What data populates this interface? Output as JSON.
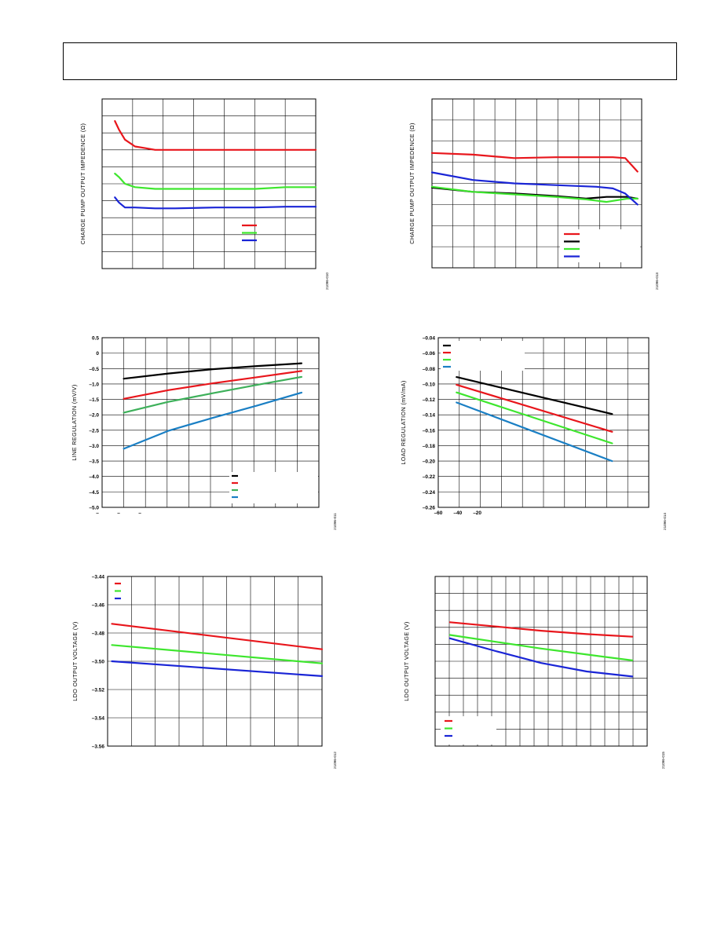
{
  "chart_data": [
    {
      "type": "line",
      "ylabel": "CHARGE PUMP OUTPUT IMPEDENCE (Ω)",
      "figure_id": "21096-010",
      "grid": true,
      "series": [
        {
          "color": "#e8161c",
          "x": [
            0,
            0.02,
            0.05,
            0.1,
            0.15,
            0.2,
            0.3,
            0.5,
            0.7,
            0.85,
            1.0
          ],
          "values": [
            0.87,
            0.82,
            0.76,
            0.72,
            0.71,
            0.7,
            0.7,
            0.7,
            0.7,
            0.7,
            0.7
          ]
        },
        {
          "color": "#3ee62e",
          "x": [
            0,
            0.02,
            0.05,
            0.1,
            0.2,
            0.3,
            0.5,
            0.7,
            0.85,
            1.0
          ],
          "values": [
            0.56,
            0.54,
            0.5,
            0.48,
            0.47,
            0.47,
            0.47,
            0.47,
            0.48,
            0.48
          ]
        },
        {
          "color": "#1a25d6",
          "x": [
            0,
            0.02,
            0.05,
            0.1,
            0.2,
            0.3,
            0.5,
            0.7,
            0.85,
            1.0
          ],
          "values": [
            0.42,
            0.39,
            0.36,
            0.36,
            0.355,
            0.355,
            0.36,
            0.36,
            0.365,
            0.365
          ]
        }
      ]
    },
    {
      "type": "line",
      "ylabel": "CHARGE PUMP OUTPUT IMPEDENCE (Ω)",
      "figure_id": "21096-013",
      "grid": true,
      "series": [
        {
          "color": "#e8161c",
          "x": [
            0,
            0.2,
            0.4,
            0.6,
            0.8,
            0.88,
            0.94,
            1.0
          ],
          "values": [
            0.68,
            0.67,
            0.65,
            0.655,
            0.655,
            0.655,
            0.65,
            0.57
          ]
        },
        {
          "color": "#000000",
          "x": [
            0,
            0.2,
            0.4,
            0.6,
            0.75,
            0.85,
            0.95,
            1.0
          ],
          "values": [
            0.475,
            0.45,
            0.44,
            0.425,
            0.41,
            0.42,
            0.42,
            0.41
          ]
        },
        {
          "color": "#3ee62e",
          "x": [
            0,
            0.2,
            0.4,
            0.6,
            0.75,
            0.85,
            0.95,
            1.0
          ],
          "values": [
            0.48,
            0.45,
            0.435,
            0.42,
            0.405,
            0.39,
            0.41,
            0.41
          ]
        },
        {
          "color": "#1a25d6",
          "x": [
            0,
            0.2,
            0.4,
            0.6,
            0.8,
            0.88,
            0.94,
            1.0
          ],
          "values": [
            0.565,
            0.52,
            0.5,
            0.49,
            0.48,
            0.47,
            0.44,
            0.375
          ]
        }
      ]
    },
    {
      "type": "line",
      "ylabel": "LINE REGULATION (mV/V)",
      "figure_id": "21096-011",
      "grid": true,
      "ylim": [
        -5.0,
        0.5
      ],
      "yticks": [
        "0.5",
        "0",
        "–0.5",
        "–1.0",
        "–1.5",
        "–2.0",
        "–2.5",
        "–3.0",
        "–3.5",
        "–4.0",
        "–4.5",
        "–5.0"
      ],
      "xticks": [
        "–",
        "–",
        "–"
      ],
      "series": [
        {
          "color": "#000000",
          "x": [
            0,
            0.25,
            0.5,
            0.75,
            1.0
          ],
          "values": [
            -0.83,
            -0.66,
            -0.52,
            -0.42,
            -0.33
          ]
        },
        {
          "color": "#e8161c",
          "x": [
            0,
            0.25,
            0.5,
            0.75,
            1.0
          ],
          "values": [
            -1.48,
            -1.2,
            -0.98,
            -0.78,
            -0.58
          ]
        },
        {
          "color": "#3db05a",
          "x": [
            0,
            0.25,
            0.5,
            0.75,
            1.0
          ],
          "values": [
            -1.93,
            -1.58,
            -1.3,
            -1.03,
            -0.77
          ]
        },
        {
          "color": "#1a7fc4",
          "x": [
            0,
            0.25,
            0.5,
            0.75,
            1.0
          ],
          "values": [
            -3.1,
            -2.52,
            -2.1,
            -1.7,
            -1.28
          ]
        }
      ]
    },
    {
      "type": "line",
      "ylabel": "LOAD REGULATION (mV/mA)",
      "figure_id": "21096-014",
      "grid": true,
      "ylim": [
        -0.26,
        -0.04
      ],
      "yticks": [
        "–0.04",
        "–0.06",
        "–0.08",
        "–0.10",
        "–0.12",
        "–0.14",
        "–0.16",
        "–0.18",
        "–0.20",
        "–0.22",
        "–0.24",
        "–0.26"
      ],
      "xticks": [
        "–60",
        "–40",
        "–20"
      ],
      "series": [
        {
          "color": "#000000",
          "x": [
            -40,
            130
          ],
          "values": [
            -0.091,
            -0.139
          ]
        },
        {
          "color": "#e8161c",
          "x": [
            -40,
            130
          ],
          "values": [
            -0.101,
            -0.162
          ]
        },
        {
          "color": "#3ee62e",
          "x": [
            -40,
            130
          ],
          "values": [
            -0.111,
            -0.177
          ]
        },
        {
          "color": "#1a7fc4",
          "x": [
            -40,
            130
          ],
          "values": [
            -0.124,
            -0.2
          ]
        }
      ]
    },
    {
      "type": "line",
      "ylabel": "LDO OUTPUT VOLTAGE (V)",
      "figure_id": "21096-012",
      "grid": true,
      "ylim": [
        -3.56,
        -3.44
      ],
      "yticks": [
        "–3.44",
        "–3.46",
        "–3.48",
        "–3.50",
        "–3.52",
        "–3.54",
        "–3.56"
      ],
      "series": [
        {
          "color": "#e8161c",
          "x": [
            0,
            1.0
          ],
          "values": [
            -3.4735,
            -3.4915
          ]
        },
        {
          "color": "#3ee62e",
          "x": [
            0,
            1.0
          ],
          "values": [
            -3.4885,
            -3.5015
          ]
        },
        {
          "color": "#1a25d6",
          "x": [
            0,
            1.0
          ],
          "values": [
            -3.5,
            -3.5105
          ]
        }
      ]
    },
    {
      "type": "line",
      "ylabel": "LDO OUTPUT VOLTAGE (V)",
      "figure_id": "21096-015",
      "grid": true,
      "series": [
        {
          "color": "#e8161c",
          "x": [
            0,
            0.25,
            0.5,
            0.75,
            1.0
          ],
          "values": [
            0.73,
            0.705,
            0.68,
            0.66,
            0.645
          ]
        },
        {
          "color": "#3ee62e",
          "x": [
            0,
            0.25,
            0.5,
            0.75,
            1.0
          ],
          "values": [
            0.655,
            0.615,
            0.575,
            0.54,
            0.505
          ]
        },
        {
          "color": "#1a25d6",
          "x": [
            0,
            0.25,
            0.5,
            0.75,
            1.0
          ],
          "values": [
            0.635,
            0.56,
            0.49,
            0.44,
            0.41
          ]
        }
      ]
    }
  ]
}
